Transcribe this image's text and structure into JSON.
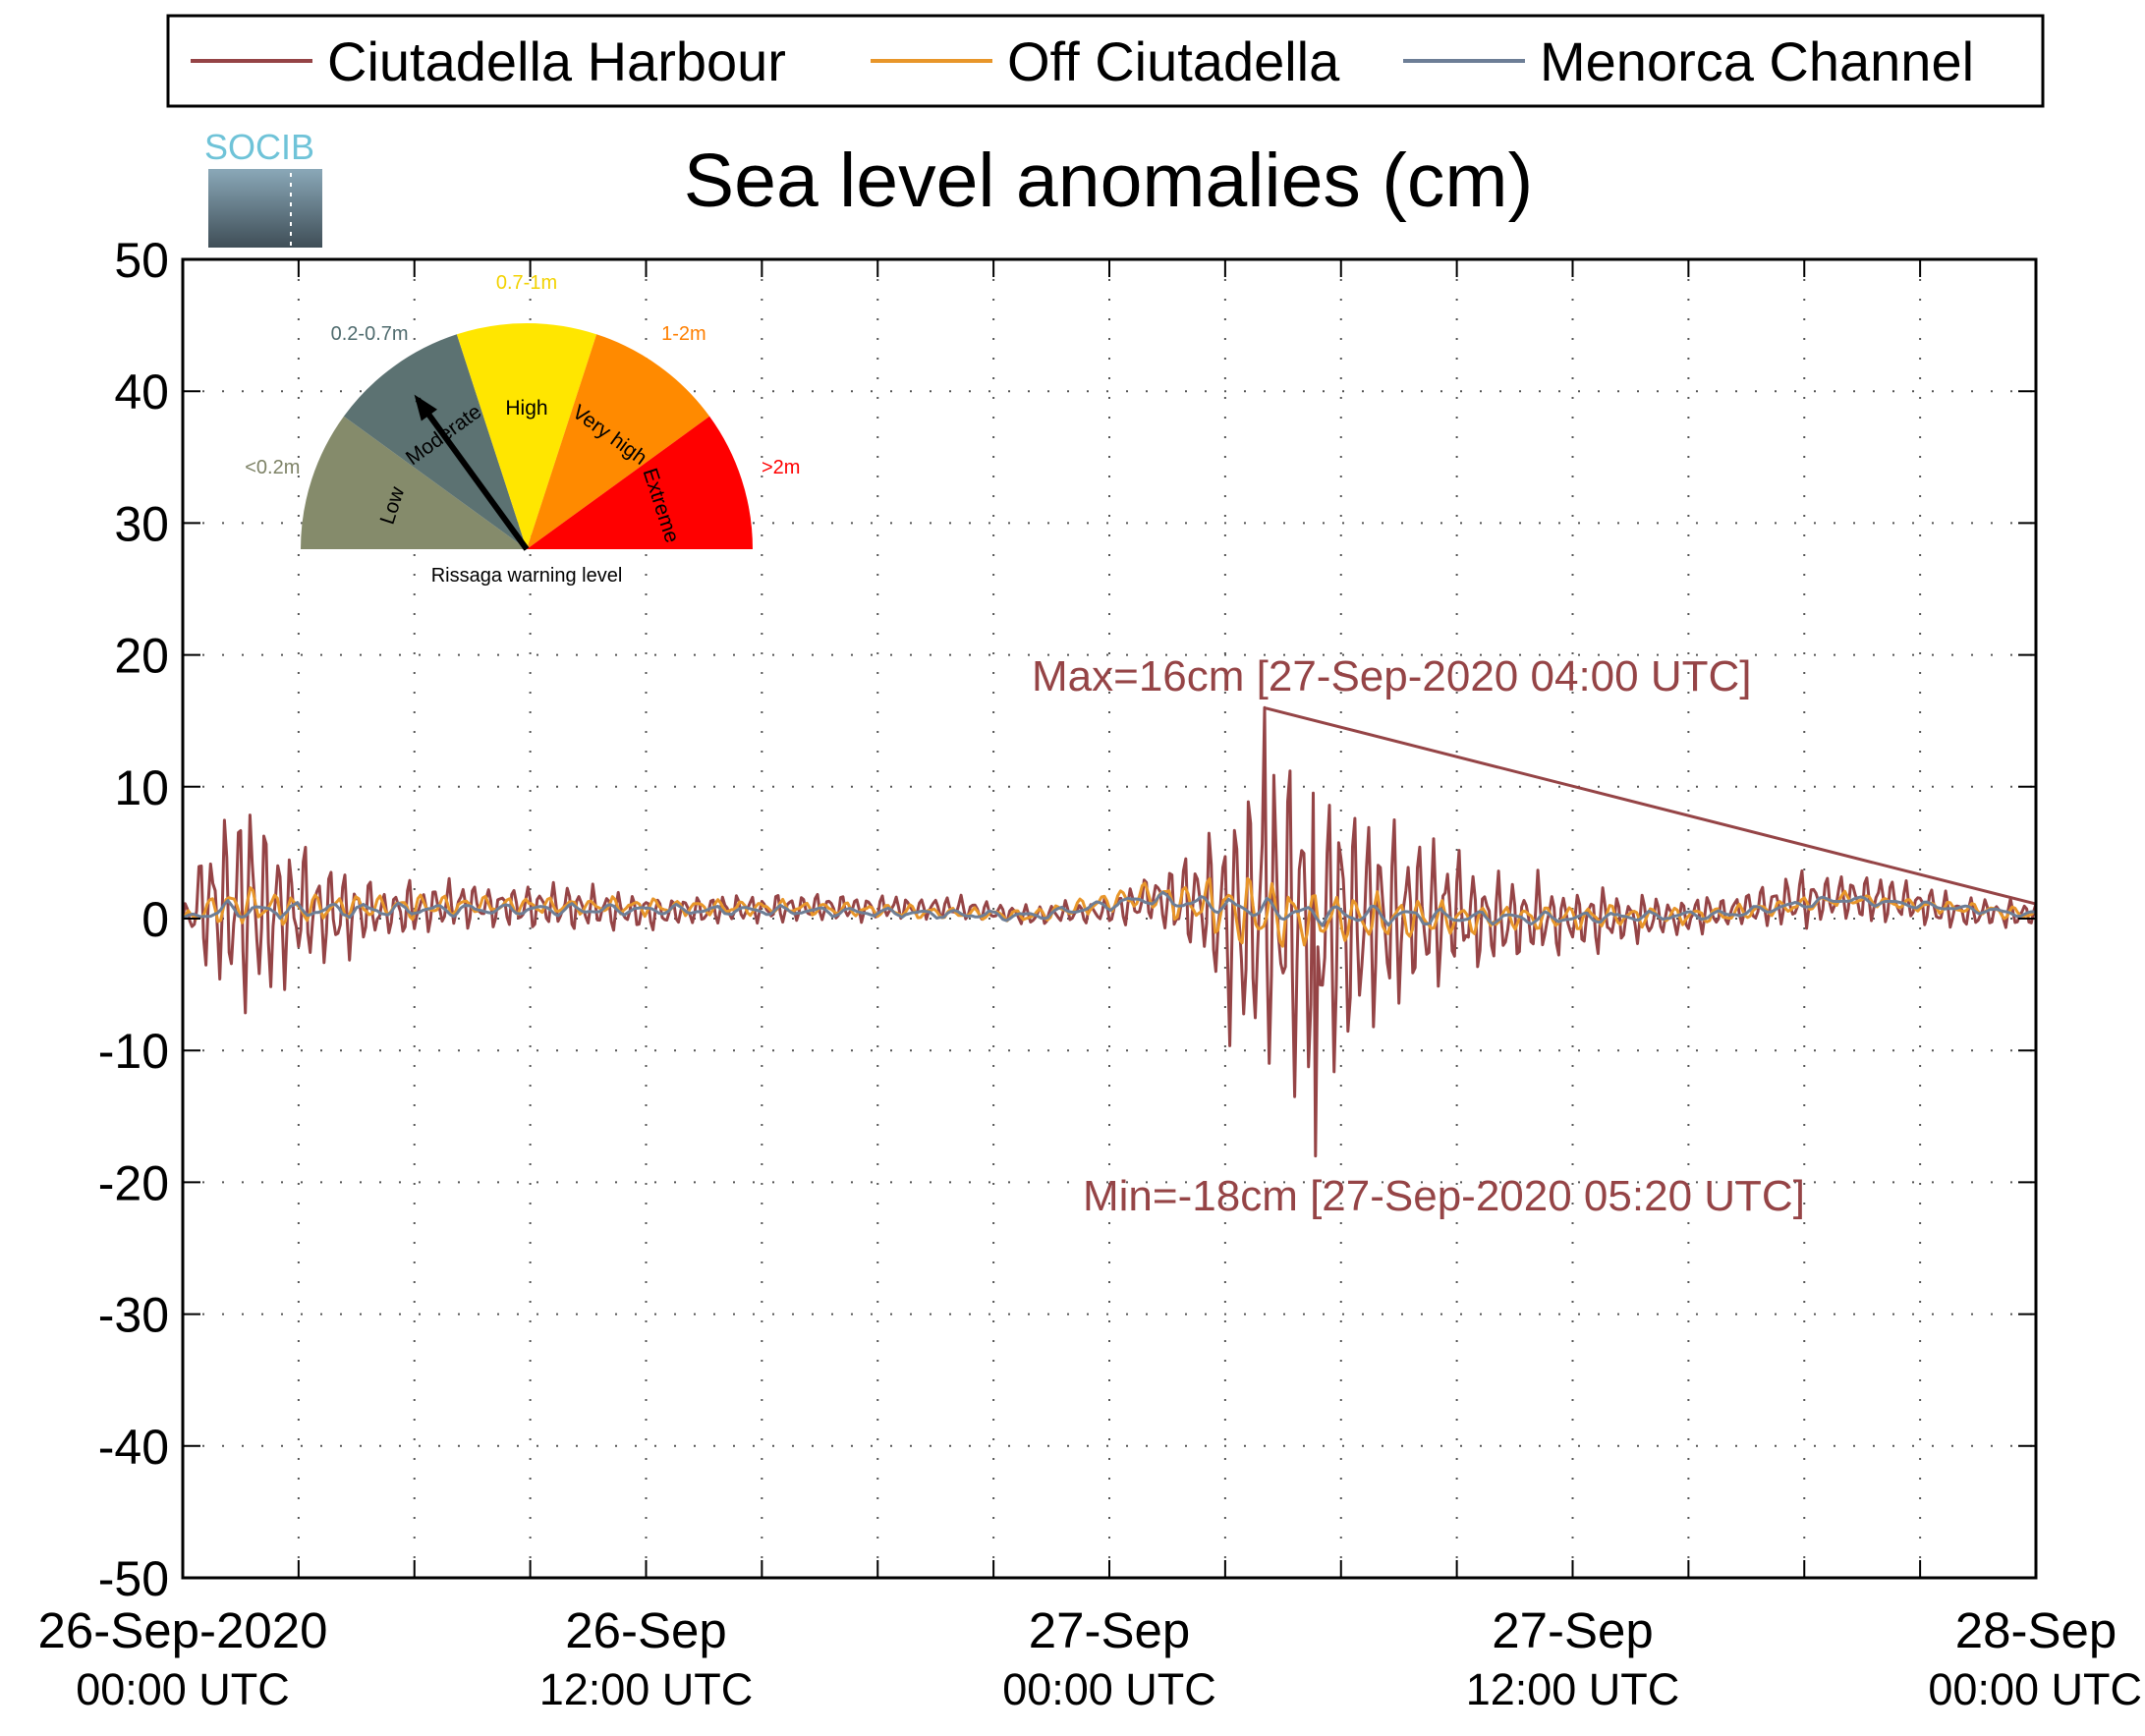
{
  "colors": {
    "harbour": "#954446",
    "off": "#e8962a",
    "channel": "#6d7e96",
    "grid": "#555555"
  },
  "logo": {
    "text": "SOCIB"
  },
  "legend": {
    "items": [
      {
        "label": "Ciutadella Harbour",
        "color": "#954446"
      },
      {
        "label": "Off Ciutadella",
        "color": "#e8962a"
      },
      {
        "label": "Menorca Channel",
        "color": "#6d7e96"
      }
    ]
  },
  "gauge": {
    "caption": "Rissaga warning level",
    "needle_level": "Moderate",
    "levels": [
      {
        "name": "Low",
        "range": "<0.2m",
        "color": "#858b6b",
        "text_color": "#7d8266"
      },
      {
        "name": "Moderate",
        "range": "0.2-0.7m",
        "color": "#5c7272",
        "text_color": "#4f6b6e"
      },
      {
        "name": "High",
        "range": "0.7-1m",
        "color": "#ffe600",
        "text_color": "#f2d200"
      },
      {
        "name": "Very high",
        "range": "1-2m",
        "color": "#ff8a00",
        "text_color": "#ff7f00"
      },
      {
        "name": "Extreme",
        "range": ">2m",
        "color": "#ff0000",
        "text_color": "#ff0000"
      }
    ]
  },
  "chart_data": {
    "type": "line",
    "title": "Sea level anomalies (cm)",
    "ylim": [
      -50,
      50
    ],
    "yticks": [
      -50,
      -40,
      -30,
      -20,
      -10,
      0,
      10,
      20,
      30,
      40,
      50
    ],
    "xlim_hours": [
      0,
      48
    ],
    "xticks": [
      {
        "date": "26-Sep-2020",
        "time": "00:00 UTC"
      },
      {
        "date": "26-Sep",
        "time": "12:00 UTC"
      },
      {
        "date": "27-Sep",
        "time": "00:00 UTC"
      },
      {
        "date": "27-Sep",
        "time": "12:00 UTC"
      },
      {
        "date": "28-Sep",
        "time": "00:00 UTC"
      }
    ],
    "grid": true,
    "legend_position": "top",
    "annotations": {
      "max": "Max=16cm [27-Sep-2020 04:00 UTC]",
      "min": "Min=-18cm [27-Sep-2020 05:20 UTC]"
    },
    "series": [
      {
        "name": "Ciutadella Harbour",
        "envelope": [
          {
            "h": 0,
            "amp": 0.5,
            "base": 0
          },
          {
            "h": 0.5,
            "amp": 5,
            "base": 1
          },
          {
            "h": 1.2,
            "amp": 8,
            "base": 1
          },
          {
            "h": 1.8,
            "amp": 10,
            "base": 1
          },
          {
            "h": 2.5,
            "amp": 7,
            "base": 0.5
          },
          {
            "h": 3.5,
            "amp": 5,
            "base": 0.5
          },
          {
            "h": 5,
            "amp": 2.5,
            "base": 0.5
          },
          {
            "h": 7,
            "amp": 2,
            "base": 1
          },
          {
            "h": 9,
            "amp": 2,
            "base": 1
          },
          {
            "h": 12,
            "amp": 1.6,
            "base": 0.5
          },
          {
            "h": 16,
            "amp": 1.2,
            "base": 0.8
          },
          {
            "h": 20,
            "amp": 1.0,
            "base": 0.8
          },
          {
            "h": 22,
            "amp": 0.8,
            "base": 0.2
          },
          {
            "h": 24,
            "amp": 1.2,
            "base": 0.6
          },
          {
            "h": 25,
            "amp": 2.5,
            "base": 1.5
          },
          {
            "h": 26.5,
            "amp": 6,
            "base": 1
          },
          {
            "h": 27.5,
            "amp": 12,
            "base": 0
          },
          {
            "h": 28.3,
            "amp": 14,
            "base": 0
          },
          {
            "h": 29.3,
            "amp": 15,
            "base": 0
          },
          {
            "h": 30.5,
            "amp": 12,
            "base": 0
          },
          {
            "h": 32,
            "amp": 7,
            "base": 0.5
          },
          {
            "h": 34,
            "amp": 4,
            "base": 0
          },
          {
            "h": 36,
            "amp": 3,
            "base": 0
          },
          {
            "h": 38,
            "amp": 2,
            "base": 0
          },
          {
            "h": 40,
            "amp": 1.5,
            "base": 0.5
          },
          {
            "h": 42,
            "amp": 2.5,
            "base": 1.5
          },
          {
            "h": 44,
            "amp": 2,
            "base": 1.5
          },
          {
            "h": 46,
            "amp": 1.5,
            "base": 0.5
          },
          {
            "h": 48,
            "amp": 1.2,
            "base": 0.3
          }
        ],
        "max": {
          "h": 28.0,
          "v": 16
        },
        "min": {
          "h": 29.33,
          "v": -18
        }
      },
      {
        "name": "Off Ciutadella",
        "envelope": [
          {
            "h": 0,
            "amp": 0.3,
            "base": 0
          },
          {
            "h": 1,
            "amp": 1.8,
            "base": 1
          },
          {
            "h": 3,
            "amp": 1.3,
            "base": 0.8
          },
          {
            "h": 8,
            "amp": 0.8,
            "base": 1
          },
          {
            "h": 16,
            "amp": 0.6,
            "base": 0.8
          },
          {
            "h": 22,
            "amp": 0.5,
            "base": 0.2
          },
          {
            "h": 25,
            "amp": 1.2,
            "base": 1.8
          },
          {
            "h": 27.5,
            "amp": 3,
            "base": 0.5
          },
          {
            "h": 29.5,
            "amp": 2.5,
            "base": 0
          },
          {
            "h": 33,
            "amp": 1.3,
            "base": 0
          },
          {
            "h": 40,
            "amp": 0.7,
            "base": 0.3
          },
          {
            "h": 43,
            "amp": 0.6,
            "base": 1.5
          },
          {
            "h": 48,
            "amp": 0.5,
            "base": 0.3
          }
        ]
      },
      {
        "name": "Menorca Channel",
        "envelope": [
          {
            "h": 0,
            "amp": 0.2,
            "base": 0
          },
          {
            "h": 1,
            "amp": 0.8,
            "base": 0.6
          },
          {
            "h": 8,
            "amp": 0.5,
            "base": 0.7
          },
          {
            "h": 16,
            "amp": 0.4,
            "base": 0.6
          },
          {
            "h": 22,
            "amp": 0.4,
            "base": 0.2
          },
          {
            "h": 25,
            "amp": 0.6,
            "base": 1.5
          },
          {
            "h": 29,
            "amp": 1.0,
            "base": 0.4
          },
          {
            "h": 35,
            "amp": 0.5,
            "base": 0
          },
          {
            "h": 40,
            "amp": 0.4,
            "base": 0.3
          },
          {
            "h": 43,
            "amp": 0.4,
            "base": 1.5
          },
          {
            "h": 48,
            "amp": 0.3,
            "base": 0.3
          }
        ]
      }
    ]
  }
}
